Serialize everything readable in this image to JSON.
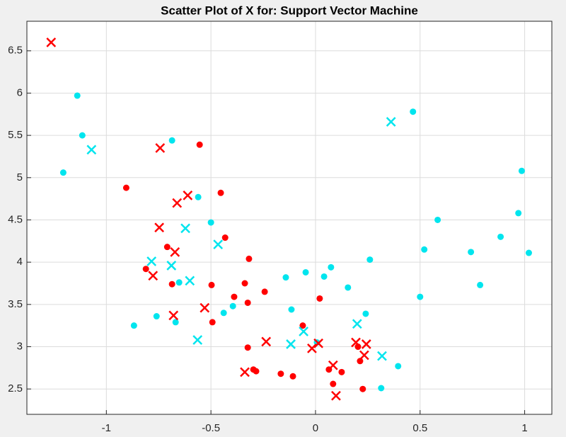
{
  "chart_data": {
    "type": "scatter",
    "title": "Scatter Plot of X for: Support Vector Machine",
    "xlim": [
      -1.38,
      1.13
    ],
    "ylim": [
      2.2,
      6.85
    ],
    "xticks": [
      -1,
      -0.5,
      0,
      0.5,
      1
    ],
    "yticks": [
      2.5,
      3,
      3.5,
      4,
      4.5,
      5,
      5.5,
      6,
      6.5
    ],
    "grid": true,
    "series": [
      {
        "color": "#ff0000",
        "marker": "o",
        "x": [
          -0.905,
          -0.554,
          -0.453,
          -0.709,
          -0.811,
          -0.686,
          -0.432,
          -0.318,
          -0.497,
          -0.389,
          -0.338,
          -0.243,
          -0.324,
          -0.493,
          -0.324,
          -0.297,
          -0.284,
          -0.166,
          -0.108,
          -0.061,
          0.02,
          0.064,
          0.084,
          0.125,
          0.203,
          0.213,
          0.226
        ],
        "values": [
          4.88,
          5.39,
          4.82,
          4.18,
          3.92,
          3.74,
          4.29,
          4.04,
          3.73,
          3.59,
          3.75,
          3.65,
          3.52,
          3.29,
          2.99,
          2.73,
          2.71,
          2.68,
          2.65,
          3.25,
          3.57,
          2.73,
          2.56,
          2.7,
          3.0,
          2.83,
          2.5
        ]
      },
      {
        "color": "#00e5ee",
        "marker": "o",
        "x": [
          -1.139,
          -1.115,
          -1.206,
          -0.686,
          -0.561,
          -0.5,
          -0.868,
          -0.76,
          -0.652,
          -0.669,
          -0.439,
          -0.395,
          -0.142,
          -0.047,
          0.041,
          0.074,
          -0.115,
          0.155,
          0.24,
          0.26,
          0.007,
          0.314,
          0.395,
          0.466,
          0.52,
          0.584,
          0.5,
          0.743,
          0.787,
          0.885,
          0.97,
          0.986,
          1.02
        ],
        "values": [
          5.97,
          5.5,
          5.06,
          5.44,
          4.77,
          4.47,
          3.25,
          3.36,
          3.76,
          3.29,
          3.4,
          3.48,
          3.82,
          3.88,
          3.83,
          3.94,
          3.44,
          3.7,
          3.39,
          4.03,
          3.05,
          2.51,
          2.77,
          5.78,
          4.15,
          4.5,
          3.59,
          4.12,
          3.73,
          4.3,
          4.58,
          5.08,
          4.11
        ]
      },
      {
        "color": "#ff0000",
        "marker": "x",
        "x": [
          -1.264,
          -0.743,
          -0.611,
          -0.662,
          -0.747,
          -0.672,
          -0.777,
          -0.679,
          -0.53,
          -0.236,
          -0.338,
          -0.017,
          0.014,
          0.084,
          0.098,
          0.193,
          0.233,
          0.243
        ],
        "values": [
          6.6,
          5.35,
          4.79,
          4.7,
          4.41,
          4.12,
          3.84,
          3.37,
          3.46,
          3.06,
          2.7,
          2.98,
          3.04,
          2.78,
          2.42,
          3.05,
          2.9,
          3.03
        ]
      },
      {
        "color": "#00e5ee",
        "marker": "x",
        "x": [
          -1.071,
          0.361,
          -0.622,
          -0.466,
          -0.784,
          -0.689,
          -0.601,
          -0.564,
          -0.118,
          -0.057,
          0.199,
          0.318
        ],
        "values": [
          5.33,
          5.66,
          4.4,
          4.21,
          4.01,
          3.96,
          3.78,
          3.08,
          3.03,
          3.18,
          3.27,
          2.89
        ]
      }
    ]
  }
}
